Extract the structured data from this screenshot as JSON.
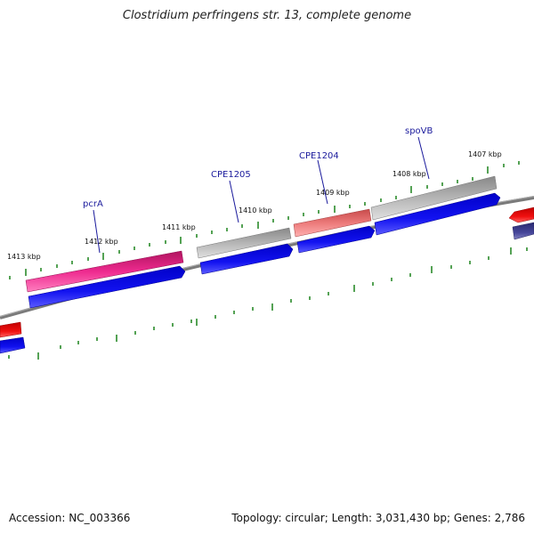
{
  "title": "Clostridium perfringens str. 13, complete genome",
  "footer": {
    "accession": "Accession: NC_003366",
    "topology": "Topology: circular; Length: 3,031,430 bp; Genes: 2,786"
  },
  "tick_labels": [
    "1413 kbp",
    "1412 kbp",
    "1411 kbp",
    "1410 kbp",
    "1409 kbp",
    "1408 kbp",
    "1407 kbp"
  ],
  "gene_labels": [
    "pcrA",
    "CPE1205",
    "CPE1204",
    "spoVB"
  ],
  "colors": {
    "backbone": "#7a7a7a",
    "tick": "#2a8a2a",
    "gene_pink": "#e8278b",
    "gene_gray": "#a8a8a8",
    "gene_salmon": "#e87070",
    "cds_blue": "#1010e0",
    "cds_red": "#e01010",
    "cds_navy": "#404090",
    "label_line": "#1a1a9c"
  }
}
